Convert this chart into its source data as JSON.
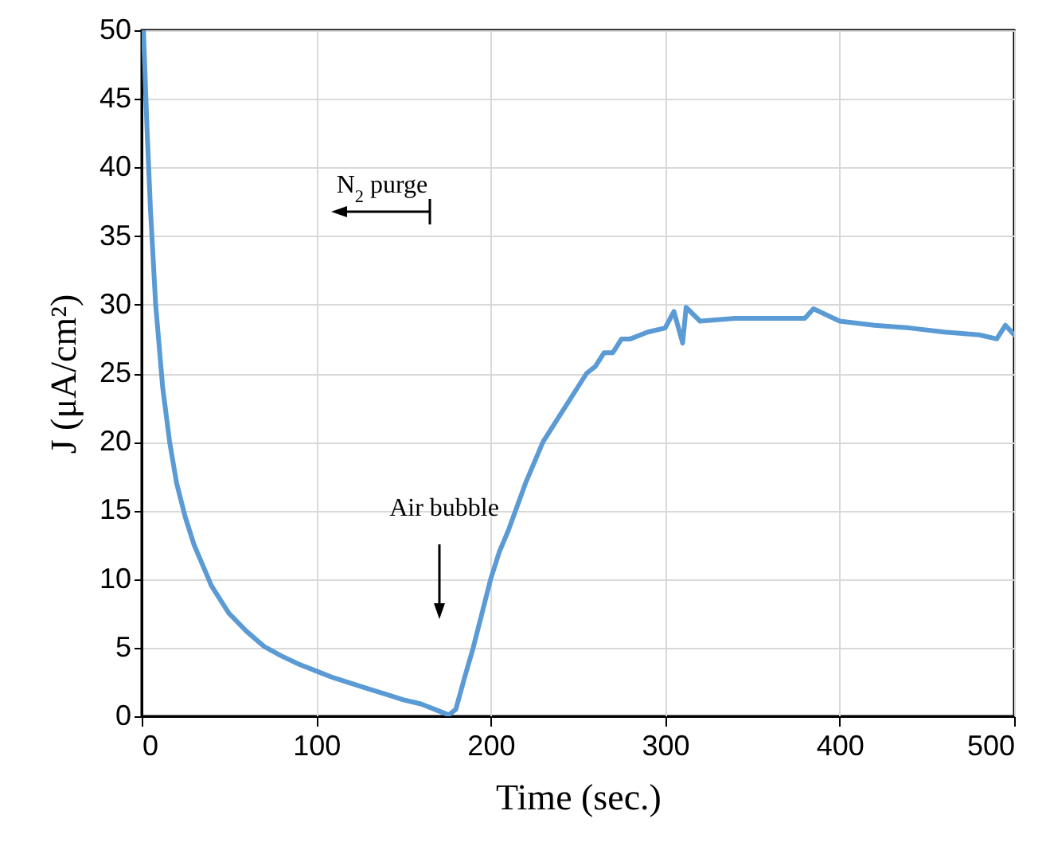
{
  "chart_data": {
    "type": "line",
    "xlabel": "Time (sec.)",
    "ylabel": "J (μA/cm²)",
    "xlim": [
      0,
      500
    ],
    "xticks": [
      0,
      100,
      200,
      300,
      400,
      500
    ],
    "ylim": [
      0,
      50
    ],
    "yticks": [
      0,
      5,
      10,
      15,
      20,
      25,
      30,
      35,
      40,
      45,
      50
    ],
    "grid": true,
    "line_style": "solid",
    "series": [
      {
        "color": "#5b9bd5",
        "x": [
          1,
          3,
          5,
          8,
          12,
          16,
          20,
          25,
          30,
          40,
          50,
          60,
          70,
          80,
          90,
          100,
          110,
          120,
          130,
          140,
          150,
          160,
          170,
          176,
          180,
          185,
          190,
          195,
          200,
          205,
          210,
          220,
          230,
          240,
          250,
          255,
          260,
          265,
          270,
          275,
          280,
          290,
          300,
          305,
          310,
          312,
          320,
          340,
          360,
          380,
          385,
          400,
          420,
          440,
          460,
          480,
          490,
          495,
          500
        ],
        "values": [
          50,
          43,
          37,
          30,
          24,
          20,
          17,
          14.5,
          12.5,
          9.5,
          7.5,
          6.2,
          5.1,
          4.4,
          3.8,
          3.3,
          2.8,
          2.4,
          2,
          1.6,
          1.2,
          0.9,
          0.4,
          0.1,
          0.5,
          2.8,
          5,
          7.5,
          10,
          12,
          13.5,
          17,
          20,
          22,
          24,
          25,
          25.5,
          26.5,
          26.5,
          27.5,
          27.5,
          28,
          28.3,
          29.5,
          27.2,
          29.8,
          28.8,
          29,
          29,
          29,
          29.7,
          28.8,
          28.5,
          28.3,
          28,
          27.8,
          27.5,
          28.5,
          27.8
        ]
      }
    ],
    "annotations": [
      "N$_{2}$ purge",
      "Air bubble"
    ]
  }
}
